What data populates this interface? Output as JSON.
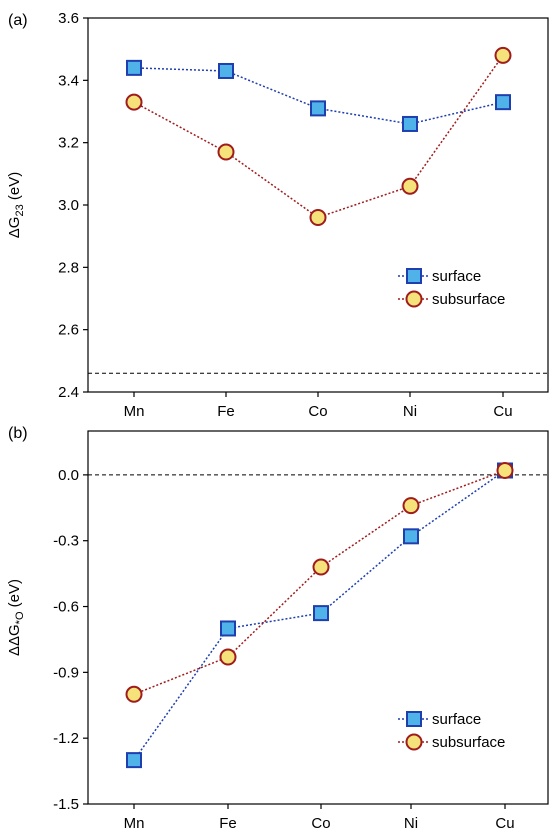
{
  "chart_data": [
    {
      "panel_label": "(a)",
      "type": "line",
      "categories": [
        "Mn",
        "Fe",
        "Co",
        "Ni",
        "Cu"
      ],
      "ylabel": "ΔG₂₃ (eV)",
      "ylabel_parts": {
        "prefix": "ΔG",
        "subscript": "23",
        "suffix": " (eV)"
      },
      "ylim": [
        2.4,
        3.6
      ],
      "yticks": [
        2.4,
        2.6,
        2.8,
        3.0,
        3.2,
        3.4,
        3.6
      ],
      "ytick_labels": [
        "2.4",
        "2.6",
        "2.8",
        "3.0",
        "3.2",
        "3.4",
        "3.6"
      ],
      "reference_line": 2.46,
      "legend_position": "lower-right",
      "series": [
        {
          "name": "surface",
          "marker": "square",
          "color": "#1f3fae",
          "fill": "#4fb3ea",
          "values": [
            3.44,
            3.43,
            3.31,
            3.26,
            3.33
          ]
        },
        {
          "name": "subsurface",
          "marker": "circle",
          "color": "#a01c1c",
          "fill": "#f6e27a",
          "values": [
            3.33,
            3.17,
            2.96,
            3.06,
            3.48
          ]
        }
      ]
    },
    {
      "panel_label": "(b)",
      "type": "line",
      "categories": [
        "Mn",
        "Fe",
        "Co",
        "Ni",
        "Cu"
      ],
      "ylabel": "ΔΔG*O (eV)",
      "ylabel_parts": {
        "prefix": "ΔΔG",
        "subscript": "*O",
        "suffix": " (eV)"
      },
      "ylim": [
        -1.5,
        0.2
      ],
      "yticks": [
        -1.5,
        -1.2,
        -0.9,
        -0.6,
        -0.3,
        0.0
      ],
      "ytick_labels": [
        "-1.5",
        "-1.2",
        "-0.9",
        "-0.6",
        "-0.3",
        "0.0"
      ],
      "reference_line": 0.0,
      "legend_position": "lower-right",
      "series": [
        {
          "name": "surface",
          "marker": "square",
          "color": "#1f3fae",
          "fill": "#4fb3ea",
          "values": [
            -1.3,
            -0.7,
            -0.63,
            -0.28,
            0.02
          ]
        },
        {
          "name": "subsurface",
          "marker": "circle",
          "color": "#a01c1c",
          "fill": "#f6e27a",
          "values": [
            -1.0,
            -0.83,
            -0.42,
            -0.14,
            0.02
          ]
        }
      ]
    }
  ]
}
